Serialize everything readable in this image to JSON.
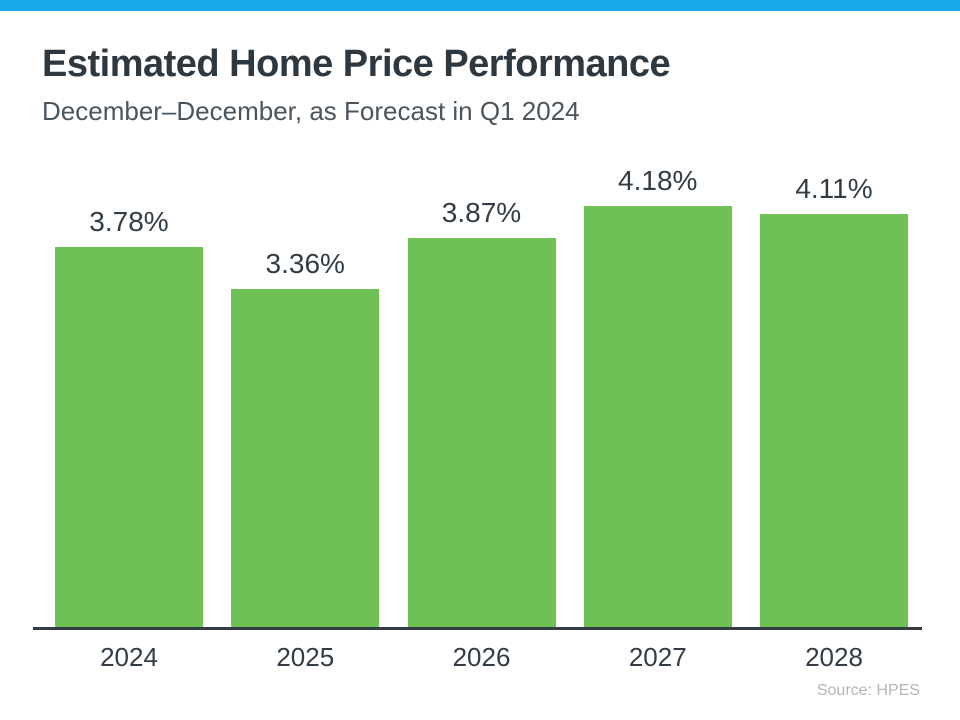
{
  "page": {
    "background_color": "#ffffff",
    "accent_bar_color": "#18A9EA"
  },
  "header": {
    "title": "Estimated Home Price Performance",
    "subtitle": "December–December, as Forecast in Q1 2024"
  },
  "chart_data": {
    "type": "bar",
    "title": "Estimated Home Price Performance",
    "subtitle": "December–December, as Forecast in Q1 2024",
    "categories": [
      "2024",
      "2025",
      "2026",
      "2027",
      "2028"
    ],
    "values": [
      3.78,
      3.36,
      3.87,
      4.18,
      4.11
    ],
    "value_labels": [
      "3.78%",
      "3.36%",
      "3.87%",
      "4.18%",
      "4.11%"
    ],
    "xlabel": "",
    "ylabel": "",
    "ylim": [
      0,
      4.4
    ],
    "grid": false,
    "legend": false,
    "bar_color": "#6EC154",
    "value_label_color": "#323C46",
    "axis_line_color": "#343C44"
  },
  "footer": {
    "source": "Source: HPES"
  }
}
